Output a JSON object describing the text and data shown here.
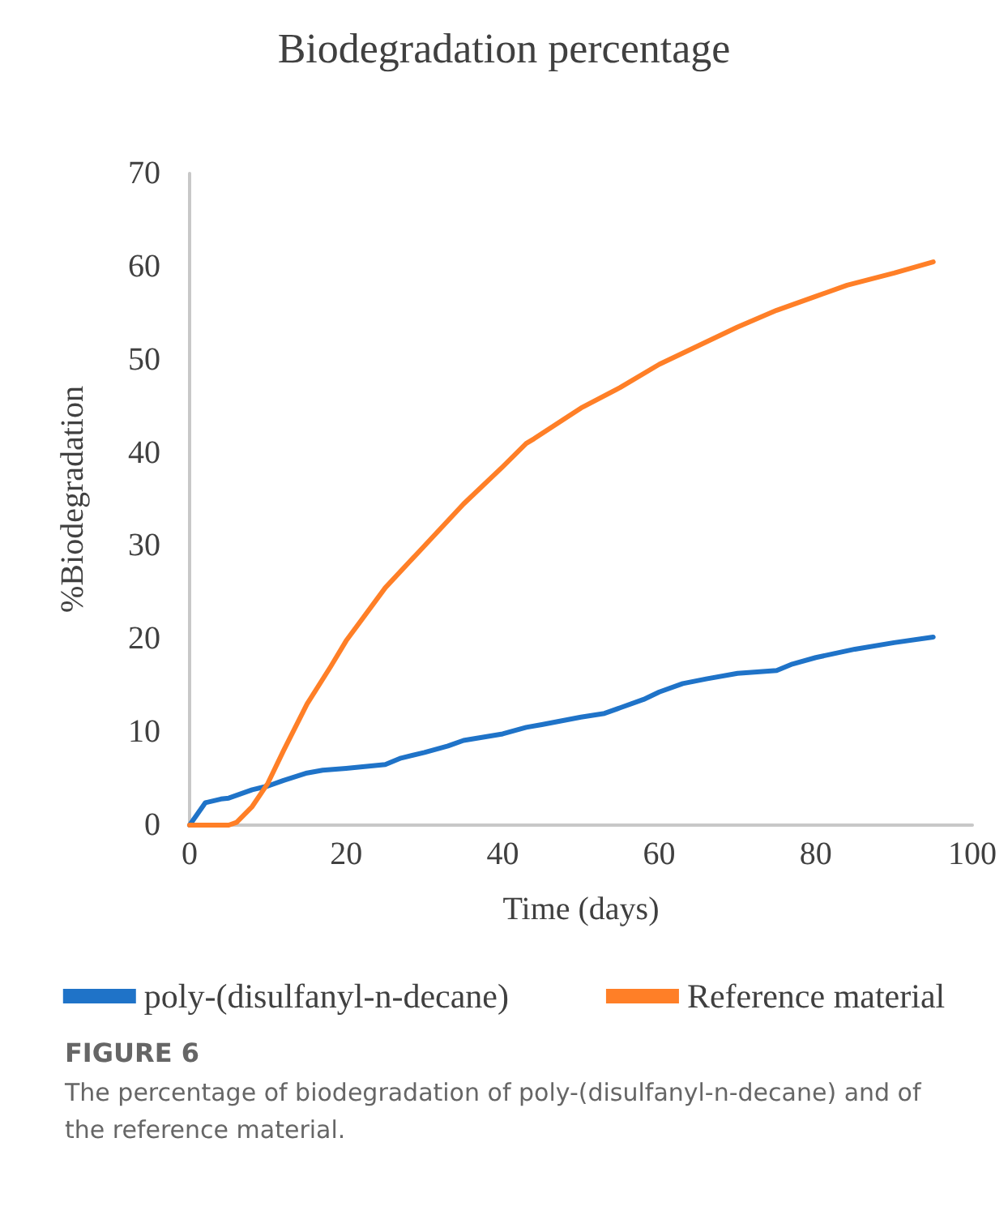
{
  "chart_data": {
    "type": "line",
    "title": "Biodegradation percentage",
    "xlabel": "Time (days)",
    "ylabel": "%Biodegradation",
    "xlim": [
      0,
      100
    ],
    "xticks": [
      0,
      20,
      40,
      60,
      80,
      100
    ],
    "ylim": [
      0,
      70
    ],
    "yticks": [
      0,
      10,
      20,
      30,
      40,
      50,
      60,
      70
    ],
    "grid": false,
    "legend": "bottom",
    "marker": "none",
    "line_style": "solid",
    "series": [
      {
        "name": "poly-(disulfanyl-n-decane)",
        "color": "#1f73c8",
        "x": [
          0,
          1,
          2,
          4,
          5,
          8,
          10,
          12,
          15,
          17,
          20,
          25,
          27,
          30,
          33,
          35,
          40,
          43,
          45,
          50,
          53,
          55,
          58,
          60,
          63,
          66,
          70,
          75,
          77,
          80,
          85,
          90,
          95
        ],
        "values": [
          0,
          1.2,
          2.4,
          2.8,
          2.9,
          3.8,
          4.2,
          4.8,
          5.6,
          5.9,
          6.1,
          6.5,
          7.2,
          7.8,
          8.5,
          9.1,
          9.8,
          10.5,
          10.8,
          11.6,
          12.0,
          12.6,
          13.5,
          14.3,
          15.2,
          15.7,
          16.3,
          16.6,
          17.3,
          18.0,
          18.9,
          19.6,
          20.2
        ]
      },
      {
        "name": "Reference material",
        "color": "#ff7f27",
        "x": [
          0,
          3,
          5,
          6,
          8,
          10,
          12,
          15,
          18,
          20,
          25,
          30,
          35,
          40,
          43,
          44,
          50,
          55,
          60,
          65,
          70,
          75,
          80,
          84,
          90,
          95
        ],
        "values": [
          0,
          0,
          0,
          0.3,
          2,
          4.5,
          8,
          13,
          17,
          19.8,
          25.5,
          30,
          34.5,
          38.5,
          41,
          41.5,
          44.8,
          47,
          49.5,
          51.5,
          53.5,
          55.3,
          56.8,
          58,
          59.3,
          60.5
        ]
      }
    ],
    "annotations": [
      "FIGURE 6",
      "The percentage of biodegradation of poly-(disulfanyl-n-decane) and of the reference material."
    ]
  }
}
